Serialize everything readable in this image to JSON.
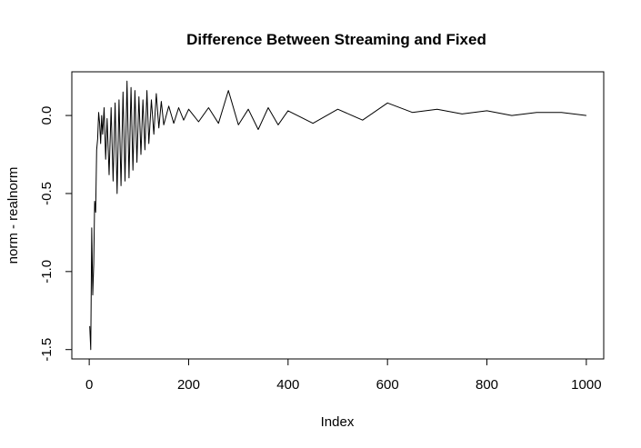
{
  "chart_data": {
    "type": "line",
    "title": "Difference Between Streaming and Fixed",
    "xlabel": "Index",
    "ylabel": "norm - realnorm",
    "xlim": [
      -35,
      1035
    ],
    "ylim": [
      -1.56,
      0.28
    ],
    "xticks": [
      0,
      200,
      400,
      600,
      800,
      1000
    ],
    "xtick_labels": [
      "0",
      "200",
      "400",
      "600",
      "800",
      "1000"
    ],
    "yticks": [
      -1.5,
      -1.0,
      -0.5,
      0.0
    ],
    "ytick_labels": [
      "-1.5",
      "-1.0",
      "-0.5",
      "0.0"
    ],
    "grid": false,
    "series": [
      {
        "color": "#000000",
        "x": [
          1,
          3,
          5,
          7,
          9,
          11,
          13,
          15,
          17,
          19,
          21,
          23,
          25,
          27,
          30,
          33,
          36,
          40,
          44,
          48,
          52,
          56,
          60,
          64,
          68,
          72,
          76,
          80,
          84,
          88,
          92,
          96,
          100,
          104,
          108,
          112,
          116,
          120,
          125,
          130,
          135,
          140,
          145,
          150,
          160,
          170,
          180,
          190,
          200,
          220,
          240,
          260,
          280,
          300,
          320,
          340,
          360,
          380,
          400,
          450,
          500,
          550,
          600,
          650,
          700,
          750,
          800,
          850,
          900,
          950,
          1000
        ],
        "y": [
          -1.35,
          -1.5,
          -0.72,
          -1.15,
          -0.95,
          -0.55,
          -0.62,
          -0.22,
          -0.15,
          0.02,
          -0.05,
          -0.18,
          0.0,
          -0.12,
          0.05,
          -0.28,
          -0.02,
          -0.38,
          0.05,
          -0.42,
          0.08,
          -0.5,
          0.1,
          -0.45,
          0.15,
          -0.42,
          0.22,
          -0.4,
          0.18,
          -0.35,
          0.16,
          -0.3,
          0.12,
          -0.25,
          0.1,
          -0.22,
          0.16,
          -0.18,
          0.1,
          -0.12,
          0.14,
          -0.08,
          0.09,
          -0.06,
          0.06,
          -0.05,
          0.05,
          -0.03,
          0.04,
          -0.04,
          0.05,
          -0.05,
          0.16,
          -0.06,
          0.04,
          -0.09,
          0.05,
          -0.06,
          0.03,
          -0.05,
          0.04,
          -0.03,
          0.08,
          0.02,
          0.04,
          0.01,
          0.03,
          0.0,
          0.02,
          0.02,
          0.0
        ]
      }
    ]
  }
}
